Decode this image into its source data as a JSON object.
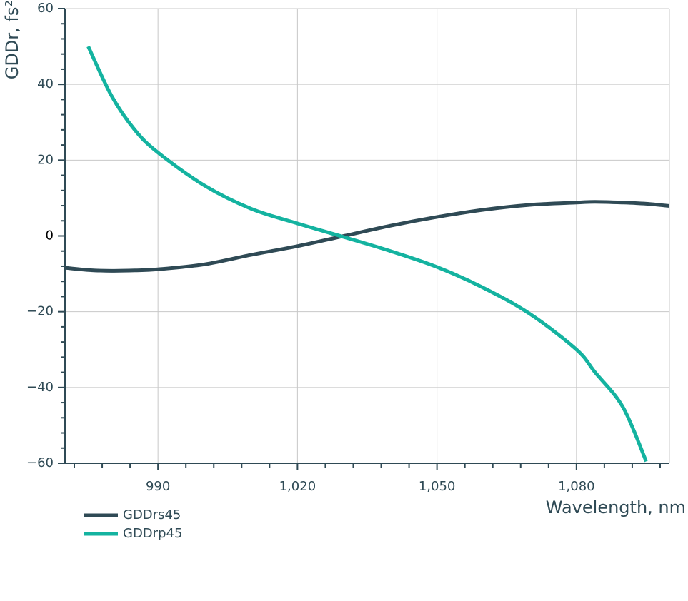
{
  "chart_data": {
    "type": "line",
    "x_label": "Wavelength, nm",
    "y_label": "GDDr, fs²",
    "x": [
      970,
      975,
      980,
      985,
      990,
      1000,
      1010,
      1020,
      1030,
      1040,
      1050,
      1060,
      1070,
      1080,
      1084,
      1090,
      1095,
      1100
    ],
    "series": [
      {
        "name": "GDDrs45",
        "color": "#2f4a55",
        "values": [
          -8.4,
          -9,
          -9.2,
          -9.1,
          -8.8,
          -7.5,
          -5,
          -2.7,
          0,
          2.7,
          5,
          6.9,
          8.2,
          8.8,
          9,
          8.8,
          8.5,
          7.9
        ]
      },
      {
        "name": "GDDrp45",
        "color": "#14b3a0",
        "values": [
          null,
          50,
          37,
          28,
          22,
          13.3,
          7.2,
          3.3,
          -0.3,
          -4,
          -8.2,
          -13.7,
          -20.6,
          -30,
          -36,
          -45.2,
          -59.5,
          null
        ]
      }
    ],
    "xlim": [
      970,
      1100
    ],
    "ylim": [
      -60,
      60
    ],
    "xticks": [
      {
        "value": 990,
        "label": "990"
      },
      {
        "value": 1020,
        "label": "1,020"
      },
      {
        "value": 1050,
        "label": "1,050"
      },
      {
        "value": 1080,
        "label": "1,080"
      }
    ],
    "xticks_minor": [
      972,
      978,
      984,
      996,
      1002,
      1008,
      1014,
      1026,
      1032,
      1038,
      1044,
      1056,
      1062,
      1068,
      1074,
      1086,
      1092,
      1098
    ],
    "yticks": [
      {
        "value": -60,
        "label": "−60"
      },
      {
        "value": -40,
        "label": "−40"
      },
      {
        "value": -20,
        "label": "−20"
      },
      0,
      20,
      40,
      60
    ],
    "yticks_minor": [
      -56,
      -52,
      -48,
      -44,
      -36,
      -32,
      -28,
      -24,
      -16,
      -12,
      -8,
      -4,
      4,
      8,
      12,
      16,
      24,
      28,
      32,
      36,
      44,
      48,
      52,
      56
    ],
    "grid": true,
    "legend": "bottom-left"
  }
}
